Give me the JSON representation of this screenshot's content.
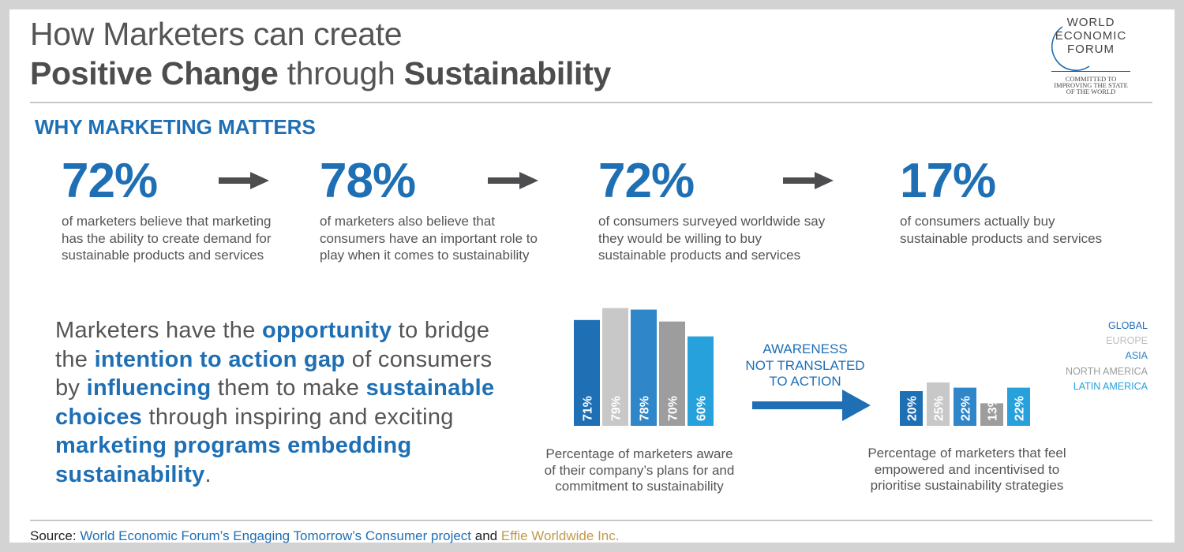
{
  "title": {
    "line1": "How Marketers can create",
    "line2_part1": "Positive Change",
    "line2_part2": " through ",
    "line2_part3": "Sustainability"
  },
  "logo": {
    "line1": "WORLD",
    "line2": "ECONOMIC",
    "line3": "FORUM",
    "tag1": "COMMITTED TO",
    "tag2": "IMPROVING THE STATE",
    "tag3": "OF THE WORLD"
  },
  "section_heading": "WHY MARKETING MATTERS",
  "stats": [
    {
      "value": "72%",
      "lines": [
        "of marketers believe that marketing",
        "has the ability to create demand for",
        "sustainable products and services"
      ]
    },
    {
      "value": "78%",
      "lines": [
        "of marketers also believe that",
        "consumers have an important role to",
        "play when it comes to sustainability"
      ]
    },
    {
      "value": "72%",
      "lines": [
        "of consumers surveyed worldwide say",
        "they would be willing to buy",
        "sustainable products and services"
      ]
    },
    {
      "value": "17%",
      "lines": [
        "of consumers actually buy",
        "sustainable products and services"
      ]
    }
  ],
  "paragraph": {
    "t1": "Marketers have the ",
    "b1": "opportunity",
    "t2": " to bridge the ",
    "b2": "intention to action gap",
    "t3": " of consumers by ",
    "b3": "influencing",
    "t4": " them to make ",
    "b4": "sustainable choices",
    "t5": " through inspiring and exciting ",
    "b5": "marketing programs embedding sustainability",
    "t6": "."
  },
  "gap_label": [
    "AWARENESS",
    "NOT TRANSLATED",
    "TO ACTION"
  ],
  "legend": [
    {
      "label": "GLOBAL",
      "color": "#1f6fb4"
    },
    {
      "label": "EUROPE",
      "color": "#c8c8c8"
    },
    {
      "label": "ASIA",
      "color": "#2f86c8"
    },
    {
      "label": "NORTH AMERICA",
      "color": "#9d9d9d"
    },
    {
      "label": "LATIN AMERICA",
      "color": "#27a1dc"
    }
  ],
  "chart_data": [
    {
      "type": "bar",
      "categories": [
        "GLOBAL",
        "EUROPE",
        "ASIA",
        "NORTH AMERICA",
        "LATIN AMERICA"
      ],
      "values": [
        71,
        79,
        78,
        70,
        60
      ],
      "data_labels": [
        "71%",
        "79%",
        "78%",
        "70%",
        "60%"
      ],
      "colors": [
        "#1f6fb4",
        "#c8c8c8",
        "#2f86c8",
        "#9d9d9d",
        "#27a1dc"
      ],
      "caption": [
        "Percentage of marketers aware",
        "of their company’s plans for and",
        "commitment to sustainability"
      ]
    },
    {
      "type": "bar",
      "categories": [
        "GLOBAL",
        "EUROPE",
        "ASIA",
        "NORTH AMERICA",
        "LATIN AMERICA"
      ],
      "values": [
        20,
        25,
        22,
        13,
        22
      ],
      "data_labels": [
        "20%",
        "25%",
        "22%",
        "13%",
        "22%"
      ],
      "colors": [
        "#1f6fb4",
        "#c8c8c8",
        "#2f86c8",
        "#9d9d9d",
        "#27a1dc"
      ],
      "caption": [
        "Percentage of marketers that feel",
        "empowered and incentivised to",
        "prioritise sustainability strategies"
      ]
    }
  ],
  "source": {
    "prefix": "Source: ",
    "wef": "World Economic Forum’s Engaging Tomorrow’s Consumer project",
    "and": " and ",
    "effie": "Effie Worldwide Inc."
  }
}
